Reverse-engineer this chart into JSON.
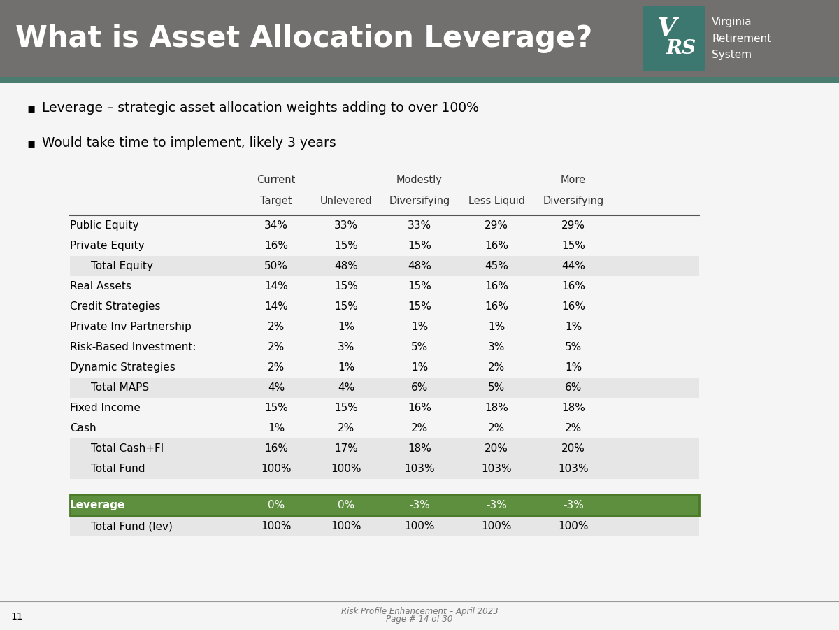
{
  "title": "What is Asset Allocation Leverage?",
  "title_bg_color": "#726f6f",
  "title_text_color": "#ffffff",
  "bullet1": "Leverage – strategic asset allocation weights adding to over 100%",
  "bullet2": "Would take time to implement, likely 3 years",
  "col_header1": [
    [
      "Current",
      0
    ],
    [
      "Modestly",
      2
    ],
    [
      "More",
      4
    ]
  ],
  "col_header2": [
    "Target",
    "Unlevered",
    "Diversifying",
    "Less Liquid",
    "Diversifying"
  ],
  "rows": [
    {
      "label": "Public Equity",
      "indent": false,
      "values": [
        "34%",
        "33%",
        "33%",
        "29%",
        "29%"
      ],
      "shaded": false
    },
    {
      "label": "Private Equity",
      "indent": false,
      "values": [
        "16%",
        "15%",
        "15%",
        "16%",
        "15%"
      ],
      "shaded": false
    },
    {
      "label": "Total Equity",
      "indent": true,
      "values": [
        "50%",
        "48%",
        "48%",
        "45%",
        "44%"
      ],
      "shaded": true
    },
    {
      "label": "Real Assets",
      "indent": false,
      "values": [
        "14%",
        "15%",
        "15%",
        "16%",
        "16%"
      ],
      "shaded": false
    },
    {
      "label": "Credit Strategies",
      "indent": false,
      "values": [
        "14%",
        "15%",
        "15%",
        "16%",
        "16%"
      ],
      "shaded": false
    },
    {
      "label": "Private Inv Partnership",
      "indent": false,
      "values": [
        "2%",
        "1%",
        "1%",
        "1%",
        "1%"
      ],
      "shaded": false
    },
    {
      "label": "Risk-Based Investment:",
      "indent": false,
      "values": [
        "2%",
        "3%",
        "5%",
        "3%",
        "5%"
      ],
      "shaded": false
    },
    {
      "label": "Dynamic Strategies",
      "indent": false,
      "values": [
        "2%",
        "1%",
        "1%",
        "2%",
        "1%"
      ],
      "shaded": false
    },
    {
      "label": "Total MAPS",
      "indent": true,
      "values": [
        "4%",
        "4%",
        "6%",
        "5%",
        "6%"
      ],
      "shaded": true
    },
    {
      "label": "Fixed Income",
      "indent": false,
      "values": [
        "15%",
        "15%",
        "16%",
        "18%",
        "18%"
      ],
      "shaded": false
    },
    {
      "label": "Cash",
      "indent": false,
      "values": [
        "1%",
        "2%",
        "2%",
        "2%",
        "2%"
      ],
      "shaded": false
    },
    {
      "label": "Total Cash+FI",
      "indent": true,
      "values": [
        "16%",
        "17%",
        "18%",
        "20%",
        "20%"
      ],
      "shaded": true
    },
    {
      "label": "Total Fund",
      "indent": true,
      "values": [
        "100%",
        "100%",
        "103%",
        "103%",
        "103%"
      ],
      "shaded": true
    }
  ],
  "leverage_row": {
    "label": "Leverage",
    "values": [
      "0%",
      "0%",
      "-3%",
      "-3%",
      "-3%"
    ],
    "bg_color": "#5d8f3e",
    "text_color": "#ffffff"
  },
  "total_lev_row": {
    "label": "Total Fund (lev)",
    "values": [
      "100%",
      "100%",
      "100%",
      "100%",
      "100%"
    ]
  },
  "shaded_color": "#e6e6e6",
  "bg_color": "#f5f5f5",
  "footer_text": "Risk Profile Enhancement – April 2023",
  "page_text": "Page # 14 of 30",
  "page_number": "11",
  "teal_bar_color": "#4a7c6f",
  "logo_bg_color": "#3d7870"
}
